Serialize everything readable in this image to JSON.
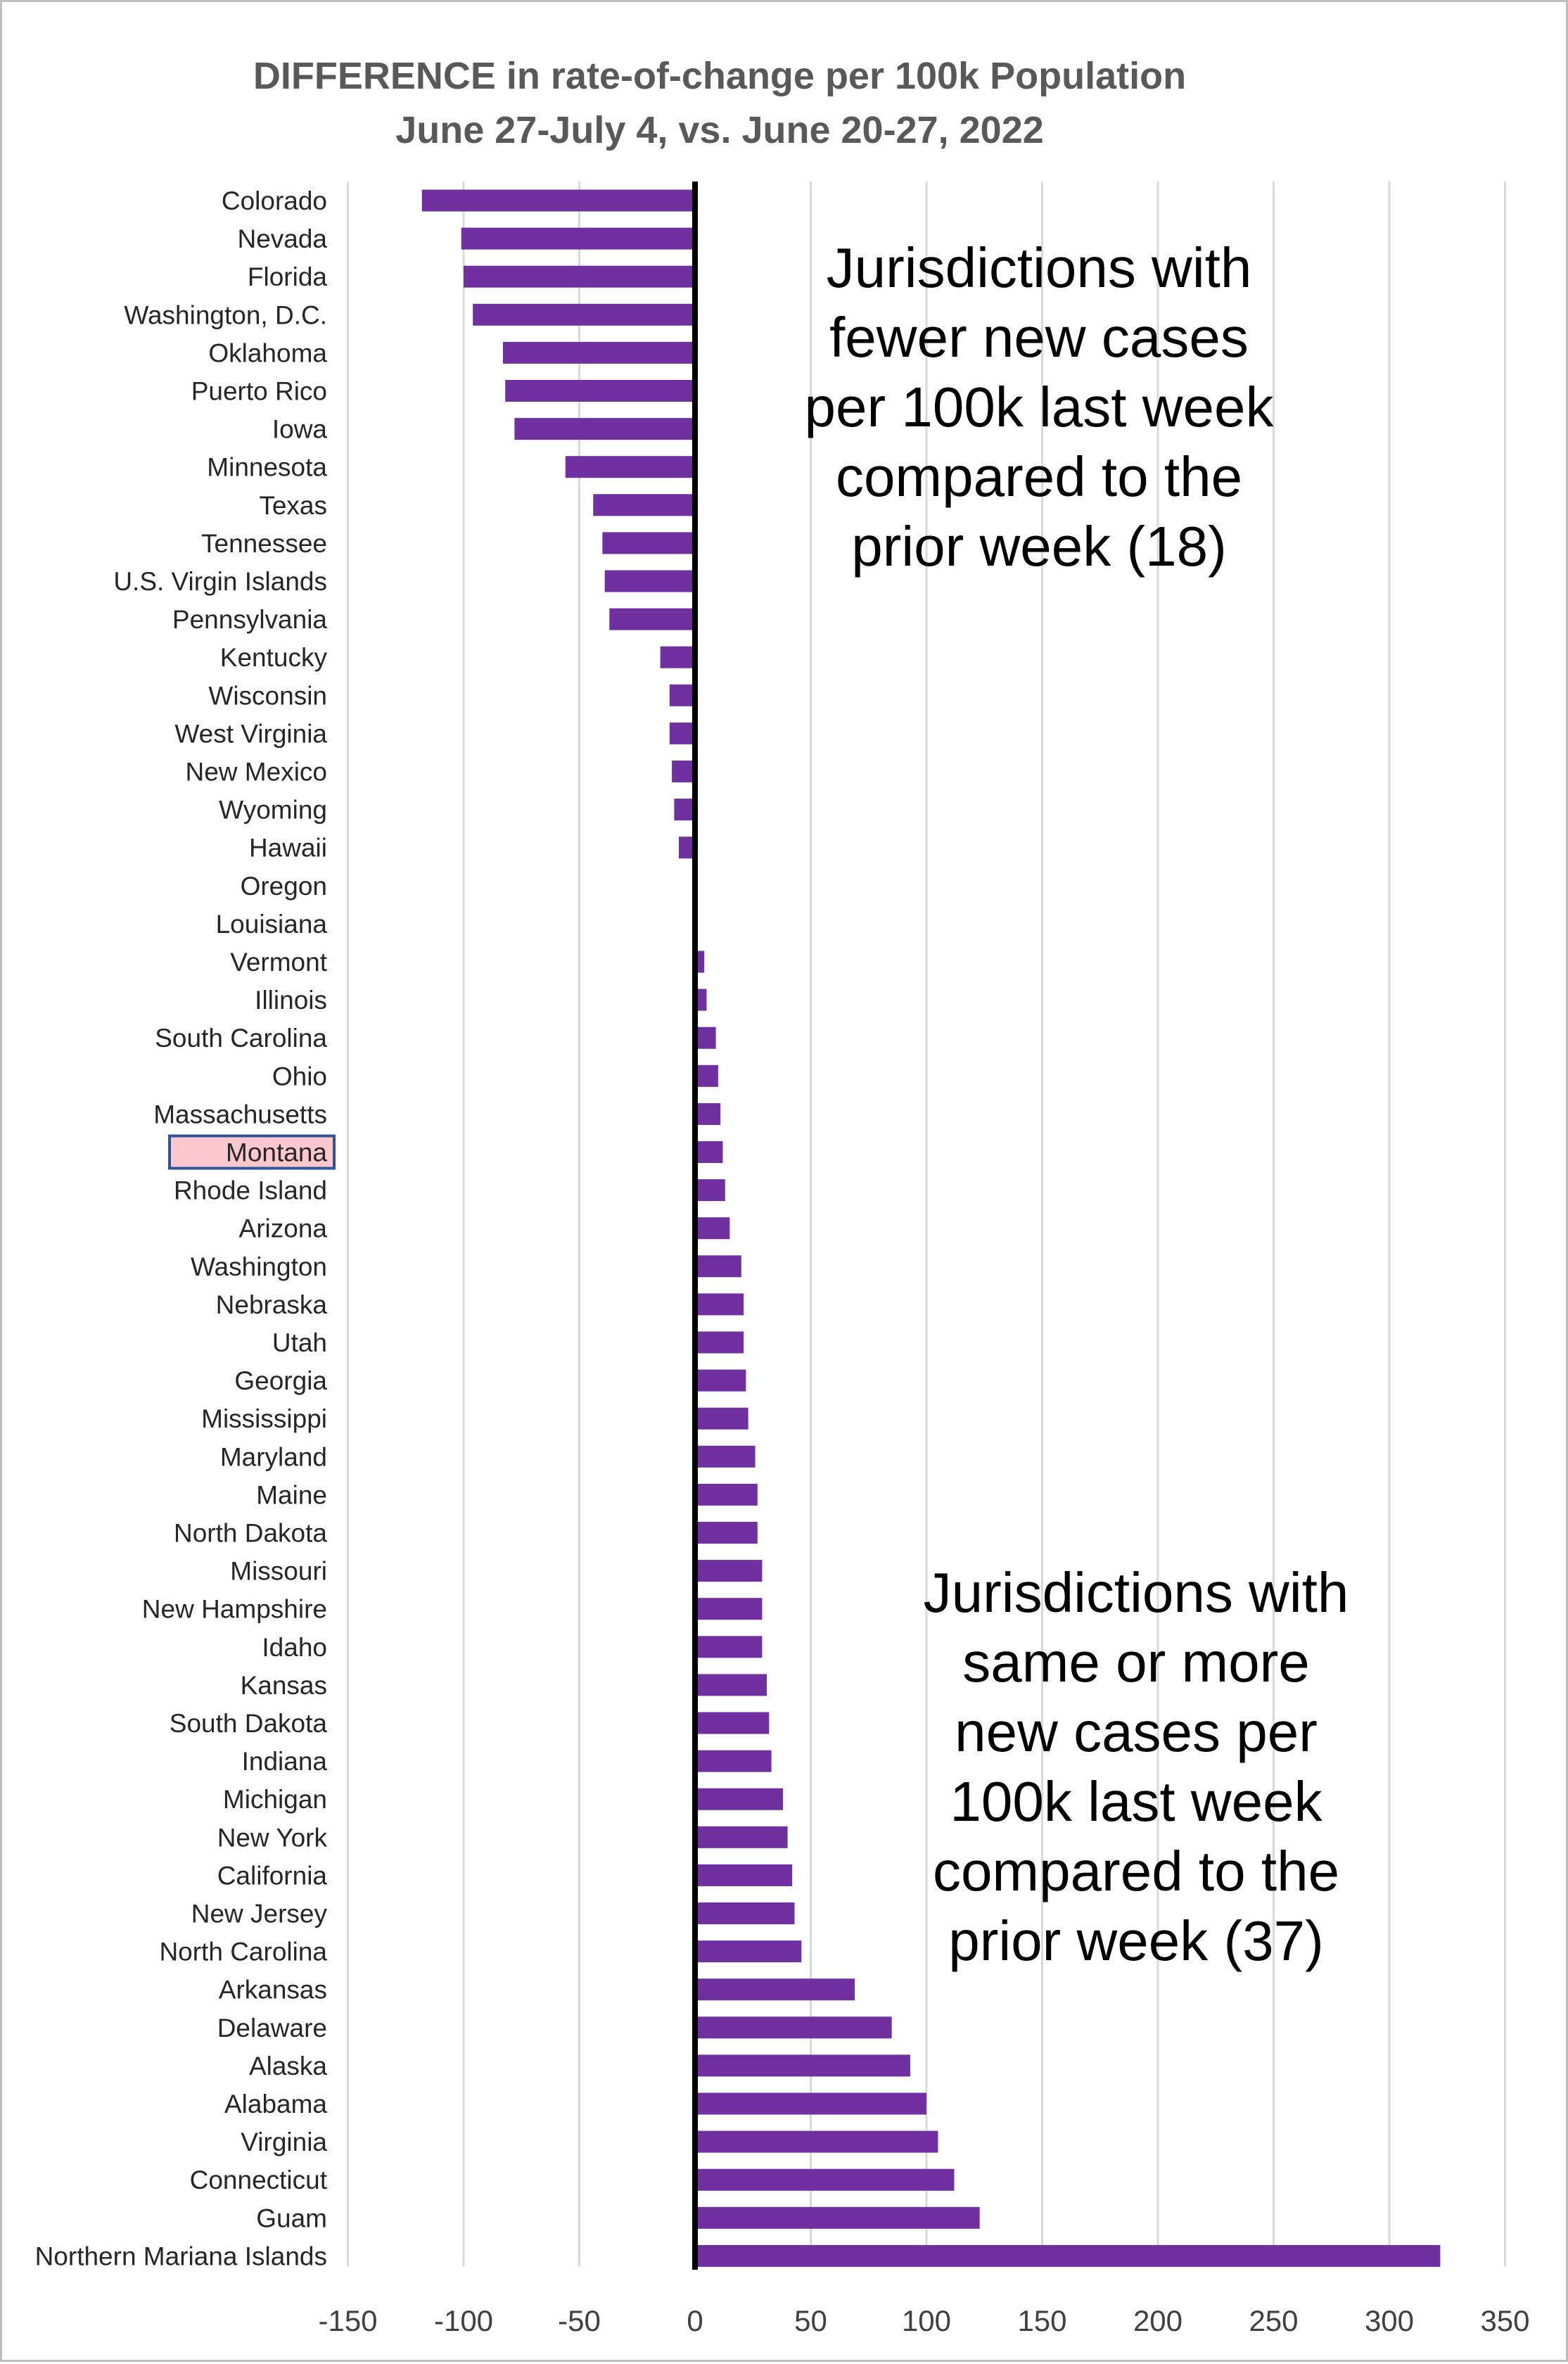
{
  "chart_data": {
    "type": "bar",
    "orientation": "horizontal",
    "title": [
      "DIFFERENCE in rate-of-change per 100k Population",
      "June 27-July 4, vs. June 20-27, 2022"
    ],
    "xlabel": "",
    "ylabel": "",
    "xlim": [
      -150,
      350
    ],
    "xticks": [
      -150,
      -100,
      -50,
      0,
      50,
      100,
      150,
      200,
      250,
      300,
      350
    ],
    "grid": true,
    "highlighted_category": "Montana",
    "bar_color": "#7030a0",
    "categories": [
      "Colorado",
      "Nevada",
      "Florida",
      "Washington, D.C.",
      "Oklahoma",
      "Puerto Rico",
      "Iowa",
      "Minnesota",
      "Texas",
      "Tennessee",
      "U.S. Virgin Islands",
      "Pennsylvania",
      "Kentucky",
      "Wisconsin",
      "West Virginia",
      "New Mexico",
      "Wyoming",
      "Hawaii",
      "Oregon",
      "Louisiana",
      "Vermont",
      "Illinois",
      "South Carolina",
      "Ohio",
      "Massachusetts",
      "Montana",
      "Rhode Island",
      "Arizona",
      "Washington",
      "Nebraska",
      "Utah",
      "Georgia",
      "Mississippi",
      "Maryland",
      "Maine",
      "North Dakota",
      "Missouri",
      "New Hampshire",
      "Idaho",
      "Kansas",
      "South Dakota",
      "Indiana",
      "Michigan",
      "New York",
      "California",
      "New Jersey",
      "North Carolina",
      "Arkansas",
      "Delaware",
      "Alaska",
      "Alabama",
      "Virginia",
      "Connecticut",
      "Guam",
      "Northern Mariana Islands"
    ],
    "values": [
      -118,
      -101,
      -100,
      -96,
      -83,
      -82,
      -78,
      -56,
      -44,
      -40,
      -39,
      -37,
      -15,
      -11,
      -11,
      -10,
      -9,
      -7,
      0,
      1,
      4,
      5,
      9,
      10,
      11,
      12,
      13,
      15,
      20,
      21,
      21,
      22,
      23,
      26,
      27,
      27,
      29,
      29,
      29,
      31,
      32,
      33,
      38,
      40,
      42,
      43,
      46,
      69,
      85,
      93,
      100,
      105,
      112,
      123,
      322
    ],
    "annotations": [
      {
        "text": [
          "Jurisdictions with",
          "fewer new cases",
          "per 100k last week",
          "compared to the",
          "prior week (18)"
        ]
      },
      {
        "text": [
          "Jurisdictions with",
          "same or more",
          "new cases per",
          "100k last week",
          "compared to the",
          "prior week (37)"
        ]
      }
    ]
  }
}
